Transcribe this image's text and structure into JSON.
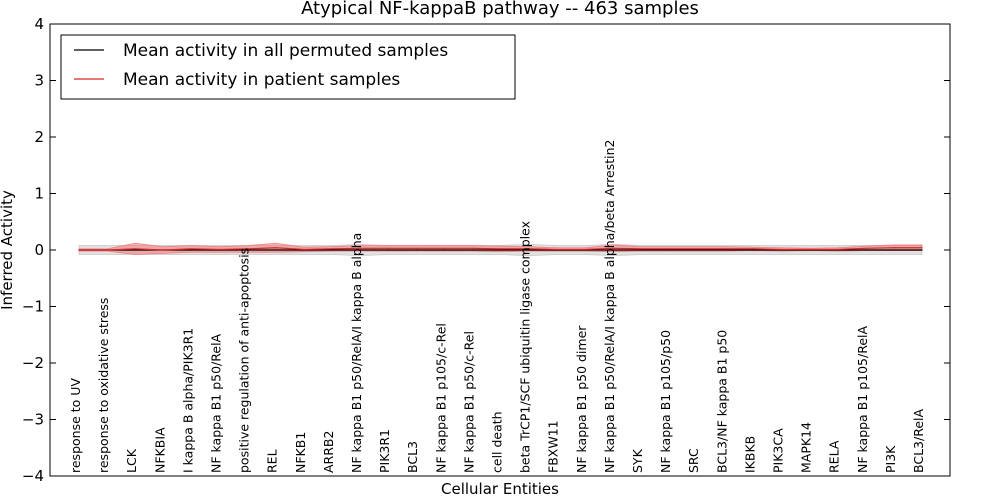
{
  "chart_data": {
    "type": "line",
    "title": "Atypical NF-kappaB pathway -- 463 samples",
    "xlabel": "Cellular Entities",
    "ylabel": "Inferred Activity",
    "ylim": [
      -4,
      4
    ],
    "yticks": [
      -4,
      -3,
      -2,
      -1,
      0,
      1,
      2,
      3,
      4
    ],
    "ytick_labels": [
      "−4",
      "−3",
      "−2",
      "−1",
      "0",
      "1",
      "2",
      "3",
      "4"
    ],
    "grid": false,
    "legend_position": "upper-left",
    "categories": [
      "response to UV",
      "response to oxidative stress",
      "LCK",
      "NFKBIA",
      "I kappa B alpha/PIK3R1",
      "NF kappa B1 p50/RelA",
      "positive regulation of anti-apoptosis",
      "REL",
      "NFKB1",
      "ARRB2",
      "NF kappa B1 p50/RelA/I kappa B alpha",
      "PIK3R1",
      "BCL3",
      "NF kappa B1 p105/c-Rel",
      "NF kappa B1 p50/c-Rel",
      "cell death",
      "beta TrCP1/SCF ubiquitin ligase complex",
      "FBXW11",
      "NF kappa B1 p50 dimer",
      "NF kappa B1 p50/RelA/I kappa B alpha/beta Arrestin2",
      "SYK",
      "NF kappa B1 p105/p50",
      "SRC",
      "BCL3/NF kappa B1 p50",
      "IKBKB",
      "PIK3CA",
      "MAPK14",
      "RELA",
      "NF kappa B1 p105/RelA",
      "PI3K",
      "BCL3/RelA"
    ],
    "series": [
      {
        "name": "Mean activity in all permuted samples",
        "color": "#000000",
        "band_color": "#c8c8c8",
        "values": [
          0.0,
          0.0,
          0.0,
          0.0,
          0.0,
          0.0,
          0.0,
          0.0,
          0.0,
          0.0,
          0.0,
          0.0,
          0.0,
          0.0,
          0.0,
          0.0,
          0.0,
          0.0,
          0.0,
          0.0,
          0.0,
          0.0,
          0.0,
          0.0,
          0.0,
          0.0,
          0.0,
          0.0,
          0.0,
          0.0,
          0.0
        ],
        "std": [
          0.08,
          0.08,
          0.08,
          0.08,
          0.08,
          0.08,
          0.08,
          0.08,
          0.08,
          0.08,
          0.1,
          0.08,
          0.08,
          0.08,
          0.08,
          0.08,
          0.1,
          0.08,
          0.08,
          0.1,
          0.08,
          0.08,
          0.08,
          0.08,
          0.08,
          0.08,
          0.08,
          0.08,
          0.08,
          0.08,
          0.08
        ]
      },
      {
        "name": "Mean activity in patient samples",
        "color": "#d62728",
        "band_color": "#f08080",
        "values": [
          0.0,
          0.0,
          0.02,
          0.0,
          0.02,
          0.01,
          0.02,
          0.04,
          0.01,
          0.02,
          0.03,
          0.03,
          0.03,
          0.03,
          0.03,
          0.02,
          0.02,
          0.01,
          0.01,
          0.03,
          0.02,
          0.02,
          0.02,
          0.02,
          0.02,
          0.01,
          0.01,
          0.01,
          0.03,
          0.04,
          0.04
        ],
        "std": [
          0.02,
          0.02,
          0.1,
          0.06,
          0.06,
          0.05,
          0.06,
          0.08,
          0.04,
          0.04,
          0.05,
          0.05,
          0.05,
          0.05,
          0.05,
          0.05,
          0.04,
          0.03,
          0.03,
          0.06,
          0.04,
          0.04,
          0.04,
          0.04,
          0.03,
          0.03,
          0.02,
          0.03,
          0.04,
          0.05,
          0.05
        ]
      }
    ]
  }
}
